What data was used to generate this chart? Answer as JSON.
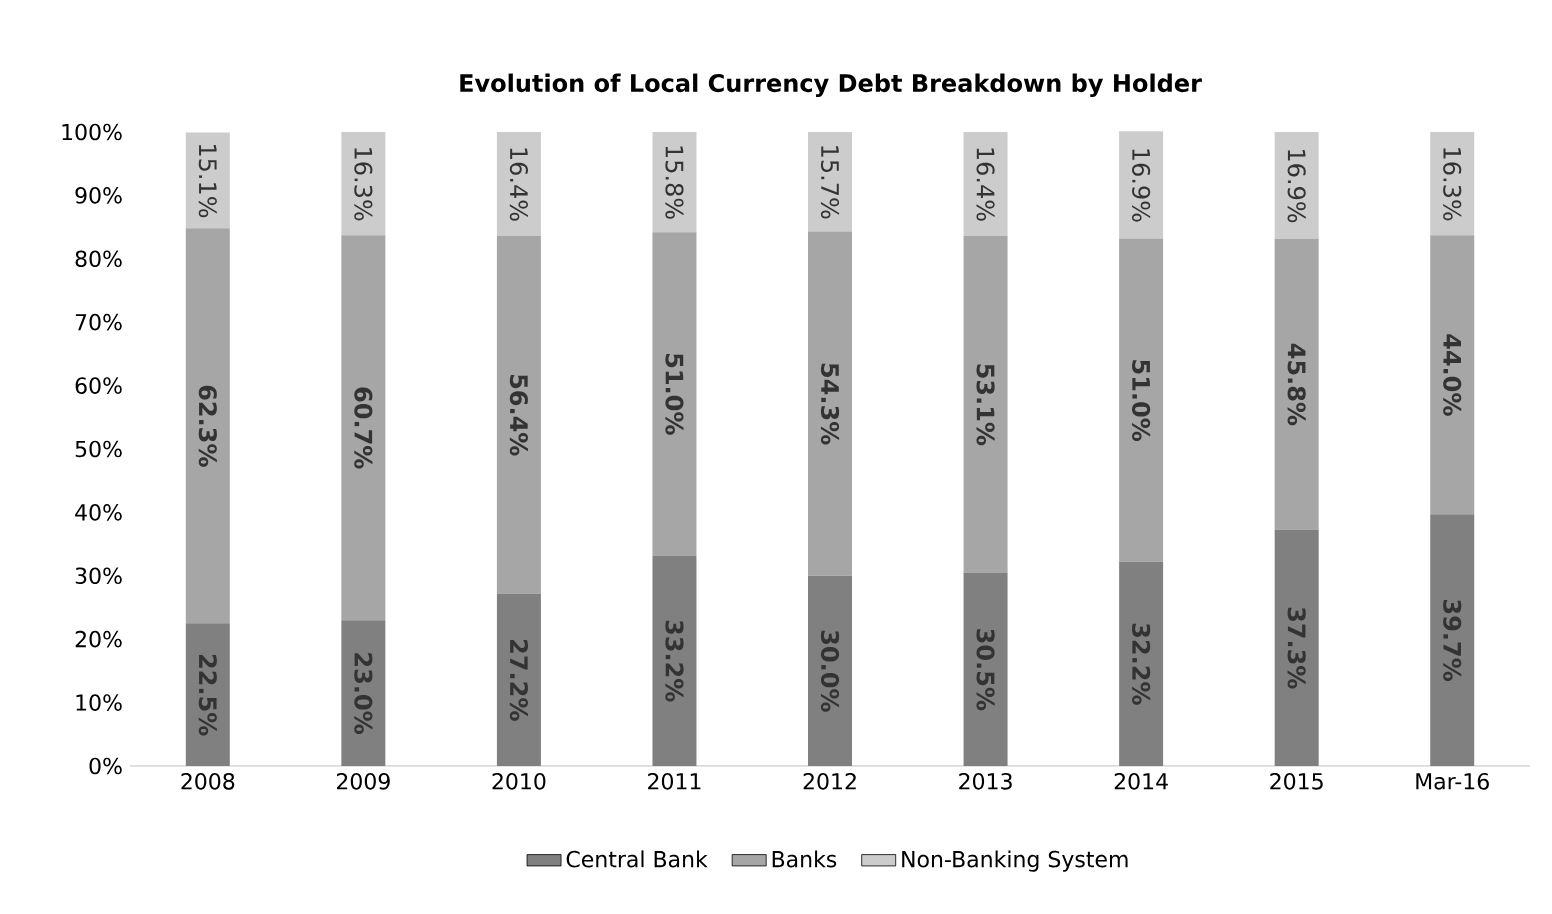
{
  "chart_data": {
    "type": "bar",
    "title": "Evolution of Local Currency Debt Breakdown by Holder",
    "stacked": true,
    "categories": [
      "2008",
      "2009",
      "2010",
      "2011",
      "2012",
      "2013",
      "2014",
      "2015",
      "Mar-16"
    ],
    "series": [
      {
        "name": "Central Bank",
        "color": "#808080",
        "values": [
          22.5,
          23.0,
          27.2,
          33.2,
          30.0,
          30.5,
          32.2,
          37.3,
          39.7
        ],
        "value_labels": [
          "22.5%",
          "23.0%",
          "27.2%",
          "33.2%",
          "30.0%",
          "30.5%",
          "32.2%",
          "37.3%",
          "39.7%"
        ]
      },
      {
        "name": "Banks",
        "color": "#a6a6a6",
        "values": [
          62.3,
          60.7,
          56.4,
          51.0,
          54.3,
          53.1,
          51.0,
          45.8,
          44.0
        ],
        "value_labels": [
          "62.3%",
          "60.7%",
          "56.4%",
          "51.0%",
          "54.3%",
          "53.1%",
          "51.0%",
          "45.8%",
          "44.0%"
        ]
      },
      {
        "name": "Non-Banking System",
        "color": "#cccccc",
        "values": [
          15.1,
          16.3,
          16.4,
          15.8,
          15.7,
          16.4,
          16.9,
          16.9,
          16.3
        ],
        "value_labels": [
          "15.1%",
          "16.3%",
          "16.4%",
          "15.8%",
          "15.7%",
          "16.4%",
          "16.9%",
          "16.9%",
          "16.3%"
        ]
      }
    ],
    "ylim": [
      0,
      100
    ],
    "yticks": [
      {
        "value": 0,
        "label": "0%"
      },
      {
        "value": 10,
        "label": "10%"
      },
      {
        "value": 20,
        "label": "20%"
      },
      {
        "value": 30,
        "label": "30%"
      },
      {
        "value": 40,
        "label": "40%"
      },
      {
        "value": 50,
        "label": "50%"
      },
      {
        "value": 60,
        "label": "60%"
      },
      {
        "value": 70,
        "label": "70%"
      },
      {
        "value": 80,
        "label": "80%"
      },
      {
        "value": 90,
        "label": "90%"
      },
      {
        "value": 100,
        "label": "100%"
      }
    ],
    "legend": "bottom"
  }
}
